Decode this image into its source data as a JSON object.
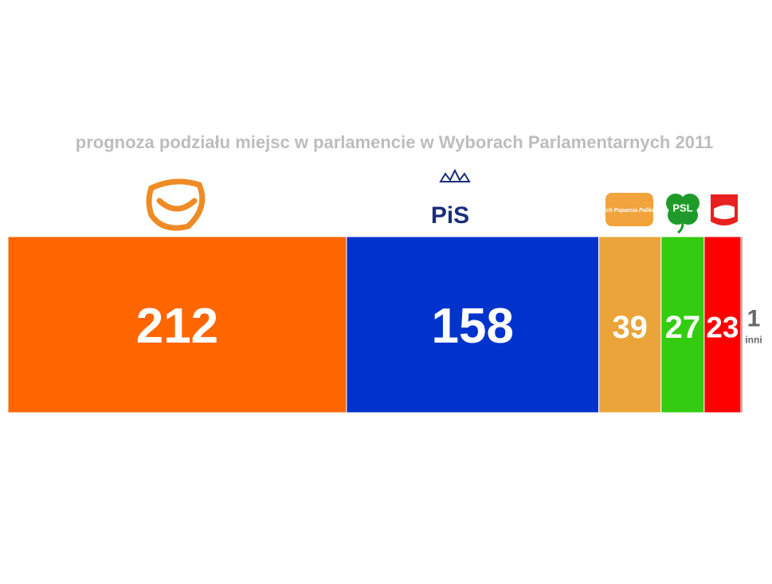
{
  "chart_data": {
    "type": "stacked-bar",
    "title": "prognoza podziału miejsc w parlamencie w Wyborach Parlamentarnych 2011",
    "categories": [
      null,
      "PiS",
      "Ruch Poparcia Palikota",
      "PSL",
      null,
      "inni"
    ],
    "values": [
      212,
      158,
      39,
      27,
      23,
      1
    ],
    "colors": [
      "#ff6600",
      "#0033cc",
      "#eba43a",
      "#33cc11",
      "#ff0000",
      "#666666"
    ]
  }
}
